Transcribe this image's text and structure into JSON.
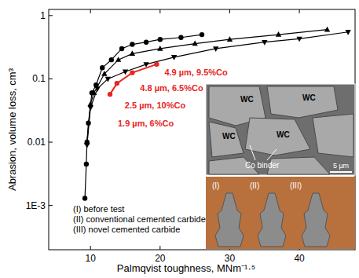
{
  "chart_data": {
    "type": "line",
    "x_label": "Palmqvist toughness, MNm⁻¹·⁵",
    "y_label": "Abrasion, volume loss, cm³",
    "log": "y",
    "xlim": [
      4,
      48
    ],
    "ylim": [
      0.0002,
      1.25
    ],
    "xticks": [
      10,
      20,
      30,
      40
    ],
    "yticks": [
      {
        "value": 0.001,
        "label": "1E-3"
      },
      0.01,
      0.1,
      1
    ],
    "grid": false,
    "series": [
      {
        "color": "#000000",
        "marker": "circle",
        "line_style": "solid",
        "x": [
          9.2,
          9.4,
          9.5,
          9.7,
          10.2,
          10.8,
          11.7,
          13,
          14.5,
          16,
          18,
          20,
          23,
          26
        ],
        "values": [
          0.0013,
          0.0045,
          0.01,
          0.02,
          0.06,
          0.08,
          0.15,
          0.2,
          0.3,
          0.35,
          0.38,
          0.42,
          0.45,
          0.5
        ]
      },
      {
        "color": "#000000",
        "marker": "triangle-up",
        "line_style": "solid",
        "x": [
          9.5,
          10,
          10.5,
          12,
          14,
          16,
          20,
          25,
          30,
          37,
          44
        ],
        "values": [
          0.01,
          0.04,
          0.06,
          0.12,
          0.2,
          0.25,
          0.3,
          0.36,
          0.42,
          0.5,
          0.6
        ]
      },
      {
        "color": "#000000",
        "marker": "triangle-down",
        "line_style": "solid",
        "x": [
          9.5,
          10,
          11,
          12.5,
          15,
          18,
          22,
          28,
          35,
          40,
          47
        ],
        "values": [
          0.009,
          0.035,
          0.07,
          0.1,
          0.13,
          0.17,
          0.22,
          0.3,
          0.38,
          0.43,
          0.55
        ]
      },
      {
        "color": "#e8251f",
        "marker": "circle",
        "line_style": "solid",
        "x": [
          12.8,
          13.8,
          16,
          19.5
        ],
        "values": [
          0.057,
          0.085,
          0.125,
          0.17
        ],
        "labels": [
          "1.9 µm, 6%Co",
          "2.5 µm, 10%Co",
          "4.8 µm, 6.5%Co",
          "4.9 µm, 9.5%Co"
        ]
      }
    ],
    "annotations": [
      "(I) before test",
      "(II) conventional cemented carbide",
      "(III) novel cemented carbide"
    ],
    "insets": {
      "micrograph": {
        "labels": [
          "WC",
          "WC",
          "WC",
          "WC"
        ],
        "binder_label": "Co binder",
        "scale_bar": "5 µm"
      },
      "photo": {
        "labels": [
          "(I)",
          "(II)",
          "(III)"
        ]
      }
    }
  }
}
